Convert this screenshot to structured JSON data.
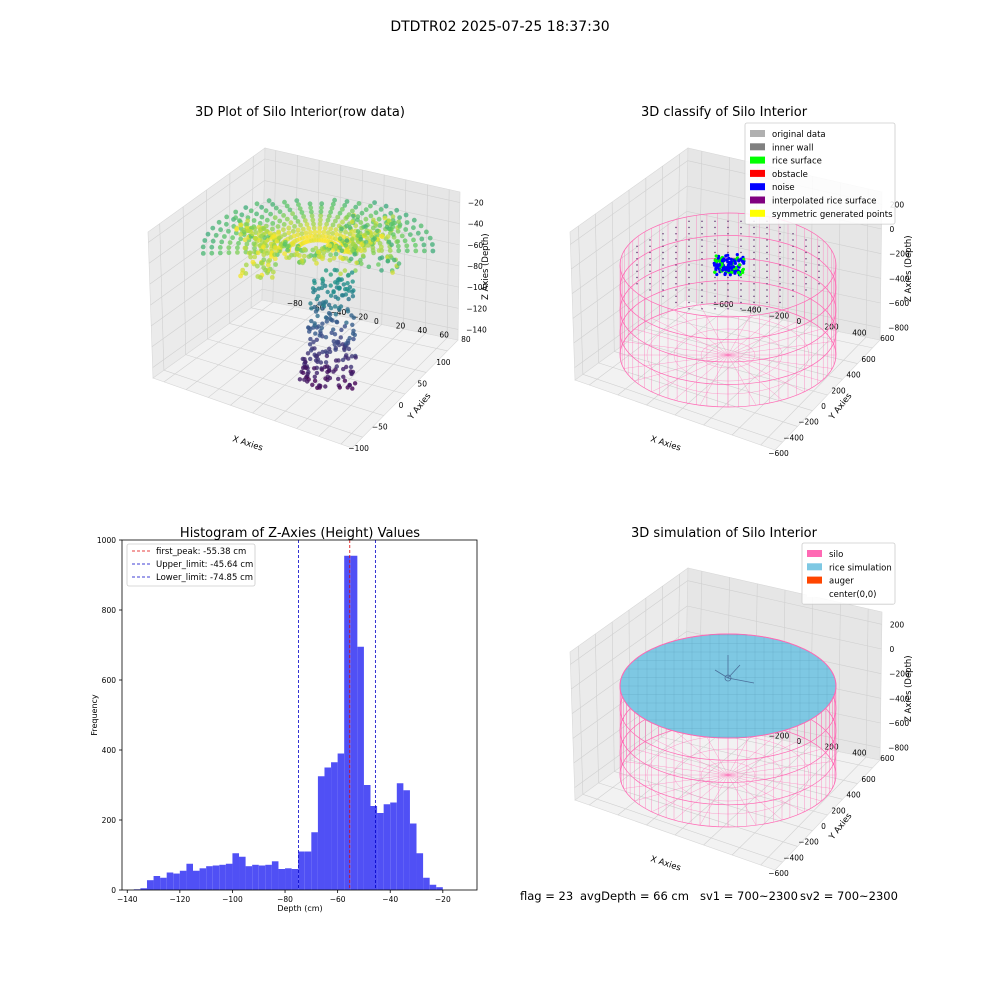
{
  "suptitle": "DTDTR02 2025-07-25 18:37:30",
  "footer": {
    "flag": "flag = 23",
    "avg": "avgDepth = 66 cm",
    "sv1": "sv1 = 700~2300",
    "sv2": "sv2 = 700~2300"
  },
  "colors": {
    "hist_bar": "#5050f5",
    "first_peak": "#e00000",
    "limit": "#0000c8",
    "silo": "#ff69b4",
    "rice_sim": "#7ec8e3",
    "auger": "#ff4500",
    "rice_surface": "#00ff00",
    "noise": "#0000ff"
  },
  "chart_data": [
    {
      "type": "scatter",
      "projection": "3d",
      "title": "3D Plot of Silo Interior(row data)",
      "xlabel": "X Axies",
      "ylabel": "Y Axies",
      "zlabel": "Z Axies (Depth)",
      "x_ticks": [
        "−100",
        "−50",
        "0",
        "50",
        "100"
      ],
      "y_ticks": [
        "−80",
        "−60",
        "−40",
        "−20",
        "0",
        "20",
        "40",
        "60",
        "80"
      ],
      "z_ticks": [
        "−20",
        "−40",
        "−60",
        "−80",
        "−100",
        "−120",
        "−140"
      ],
      "xlim": [
        -130,
        110
      ],
      "ylim": [
        -90,
        90
      ],
      "zlim": [
        -145,
        -12
      ],
      "colormap": "viridis"
    },
    {
      "type": "scatter",
      "projection": "3d",
      "title": "3D classify of Silo Interior",
      "x_ticks": [
        "−600",
        "−400",
        "−200",
        "0",
        "200",
        "400",
        "600"
      ],
      "y_ticks": [
        "−600",
        "−400",
        "−200",
        "0",
        "200",
        "400",
        "600"
      ],
      "z_ticks": [
        "200",
        "0",
        "−200",
        "−400",
        "−600",
        "−800"
      ],
      "xlabel": "X Axies",
      "ylabel": "Y Axies",
      "zlabel": "Z Axies (Depth)",
      "legend_position": "top-right",
      "legend": [
        {
          "label": "original data",
          "color": "#b0b0b0"
        },
        {
          "label": "inner wall",
          "color": "#808080"
        },
        {
          "label": "rice surface",
          "color": "#00ff00"
        },
        {
          "label": "obstacle",
          "color": "#ff0000"
        },
        {
          "label": "noise",
          "color": "#0000ff"
        },
        {
          "label": "interpolated rice surface",
          "color": "#800080"
        },
        {
          "label": "symmetric generated points",
          "color": "#ffff00"
        }
      ]
    },
    {
      "type": "bar",
      "title": "Histogram of Z-Axies (Height) Values",
      "xlabel": "Depth (cm)",
      "ylabel": "Frequency",
      "xlim": [
        -142,
        -7
      ],
      "ylim": [
        0,
        1000
      ],
      "x_ticks": [
        -140,
        -120,
        -100,
        -80,
        -60,
        -40,
        -20
      ],
      "y_ticks": [
        0,
        200,
        400,
        600,
        800,
        1000
      ],
      "bin_start": -137.5,
      "bin_width": 2.5,
      "values": [
        2,
        5,
        28,
        40,
        35,
        50,
        47,
        55,
        75,
        55,
        62,
        68,
        70,
        72,
        75,
        105,
        95,
        68,
        72,
        70,
        72,
        82,
        60,
        62,
        60,
        110,
        110,
        165,
        325,
        350,
        365,
        390,
        955,
        955,
        695,
        300,
        240,
        220,
        245,
        250,
        305,
        285,
        190,
        105,
        35,
        15,
        8
      ],
      "lines": [
        {
          "label": "first_peak: -55.38 cm",
          "x": -55.38,
          "color": "#e00000"
        },
        {
          "label": "Upper_limit: -45.64 cm",
          "x": -45.64,
          "color": "#0000c8"
        },
        {
          "label": "Lower_limit: -74.85 cm",
          "x": -74.85,
          "color": "#0000c8"
        }
      ],
      "legend_position": "top-left"
    },
    {
      "type": "scatter",
      "projection": "3d",
      "title": "3D simulation of Silo Interior",
      "x_ticks": [
        "−600",
        "−400",
        "−200",
        "0",
        "200",
        "400",
        "600"
      ],
      "y_ticks": [
        "−600",
        "−400",
        "−200",
        "0",
        "200",
        "400",
        "600"
      ],
      "z_ticks": [
        "200",
        "0",
        "−200",
        "−400",
        "−600",
        "−800"
      ],
      "xlabel": "X Axies",
      "ylabel": "Y Axies",
      "zlabel": "Z Axies (Depth)",
      "legend_position": "top-right",
      "legend": [
        {
          "label": "silo",
          "color": "#ff69b4"
        },
        {
          "label": "rice simulation",
          "color": "#7ec8e3"
        },
        {
          "label": "auger",
          "color": "#ff4500"
        },
        {
          "label": "center(0,0)",
          "color": "#ffffff"
        }
      ]
    }
  ]
}
